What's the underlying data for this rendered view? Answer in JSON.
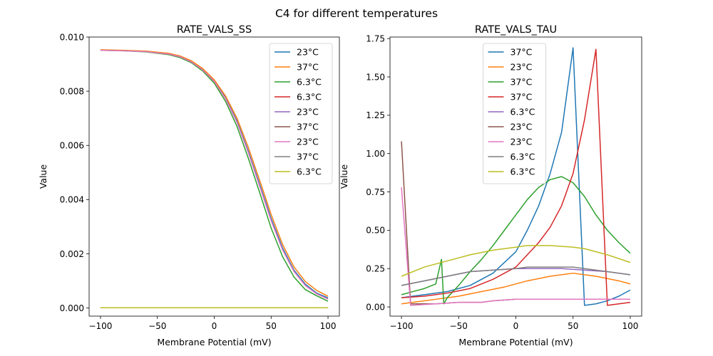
{
  "suptitle": "C4 for different temperatures",
  "chart_data": [
    {
      "type": "line",
      "title": "RATE_VALS_SS",
      "xlabel": "Membrane Potential (mV)",
      "ylabel": "Value",
      "xlim": [
        -110,
        110
      ],
      "ylim": [
        -0.0003,
        0.01
      ],
      "xticks": [
        -100,
        -50,
        0,
        50,
        100
      ],
      "xtick_labels": [
        "−100",
        "−50",
        "0",
        "50",
        "100"
      ],
      "yticks": [
        0,
        0.002,
        0.004,
        0.006,
        0.008,
        0.01
      ],
      "ytick_labels": [
        "0.000",
        "0.002",
        "0.004",
        "0.006",
        "0.008",
        "0.010"
      ],
      "legend_position": "top-right",
      "series": [
        {
          "name": "23°C",
          "color": "#1f77b4",
          "points": [
            [
              -100,
              0.00952
            ],
            [
              -80,
              0.0095
            ],
            [
              -60,
              0.00947
            ],
            [
              -40,
              0.00938
            ],
            [
              -30,
              0.00928
            ],
            [
              -20,
              0.0091
            ],
            [
              -10,
              0.0088
            ],
            [
              0,
              0.00838
            ],
            [
              10,
              0.00775
            ],
            [
              20,
              0.0069
            ],
            [
              30,
              0.00578
            ],
            [
              40,
              0.00455
            ],
            [
              50,
              0.0033
            ],
            [
              60,
              0.00222
            ],
            [
              70,
              0.0014
            ],
            [
              80,
              0.00088
            ],
            [
              90,
              0.00055
            ],
            [
              100,
              0.00037
            ]
          ]
        },
        {
          "name": "37°C",
          "color": "#ff7f0e",
          "points": [
            [
              -100,
              0.00953
            ],
            [
              -80,
              0.00951
            ],
            [
              -60,
              0.00948
            ],
            [
              -40,
              0.0094
            ],
            [
              -30,
              0.0093
            ],
            [
              -20,
              0.00912
            ],
            [
              -10,
              0.00883
            ],
            [
              0,
              0.00842
            ],
            [
              10,
              0.00782
            ],
            [
              20,
              0.007
            ],
            [
              30,
              0.00592
            ],
            [
              40,
              0.0047
            ],
            [
              50,
              0.00345
            ],
            [
              60,
              0.00235
            ],
            [
              70,
              0.00152
            ],
            [
              80,
              0.00098
            ],
            [
              90,
              0.00065
            ],
            [
              100,
              0.00043
            ]
          ]
        },
        {
          "name": "6.3°C",
          "color": "#2ca02c",
          "points": [
            [
              -100,
              0.00951
            ],
            [
              -80,
              0.00949
            ],
            [
              -60,
              0.00945
            ],
            [
              -40,
              0.00935
            ],
            [
              -30,
              0.00924
            ],
            [
              -20,
              0.00905
            ],
            [
              -10,
              0.00874
            ],
            [
              0,
              0.0083
            ],
            [
              10,
              0.00762
            ],
            [
              20,
              0.0067
            ],
            [
              30,
              0.00552
            ],
            [
              40,
              0.00425
            ],
            [
              50,
              0.00295
            ],
            [
              60,
              0.0019
            ],
            [
              70,
              0.00115
            ],
            [
              80,
              0.00068
            ],
            [
              90,
              0.00045
            ],
            [
              100,
              0.00025
            ]
          ]
        },
        {
          "name": "6.3°C",
          "color": "#d62728",
          "points": [
            [
              -100,
              1e-05
            ],
            [
              100,
              1e-05
            ]
          ]
        },
        {
          "name": "23°C",
          "color": "#9467bd",
          "points": [
            [
              -100,
              1e-05
            ],
            [
              100,
              1e-05
            ]
          ]
        },
        {
          "name": "37°C",
          "color": "#8c564b",
          "points": [
            [
              -100,
              1e-05
            ],
            [
              100,
              1e-05
            ]
          ]
        },
        {
          "name": "23°C",
          "color": "#e377c2",
          "points": [
            [
              -100,
              0.00951
            ],
            [
              -80,
              0.00949
            ],
            [
              -60,
              0.00946
            ],
            [
              -40,
              0.00937
            ],
            [
              -30,
              0.00927
            ],
            [
              -20,
              0.00908
            ],
            [
              -10,
              0.00878
            ],
            [
              0,
              0.00836
            ],
            [
              10,
              0.00772
            ],
            [
              20,
              0.00685
            ],
            [
              30,
              0.00572
            ],
            [
              40,
              0.00448
            ],
            [
              50,
              0.00322
            ],
            [
              60,
              0.00215
            ],
            [
              70,
              0.00135
            ],
            [
              80,
              0.00083
            ],
            [
              90,
              0.00052
            ],
            [
              100,
              0.00033
            ]
          ]
        },
        {
          "name": "37°C",
          "color": "#7f7f7f",
          "points": [
            [
              -100,
              1e-05
            ],
            [
              100,
              1e-05
            ]
          ]
        },
        {
          "name": "6.3°C",
          "color": "#bcbd22",
          "points": [
            [
              -100,
              1e-05
            ],
            [
              100,
              1e-05
            ]
          ]
        }
      ]
    },
    {
      "type": "line",
      "title": "RATE_VALS_TAU",
      "xlabel": "Membrane Potential (mV)",
      "ylabel": "Value",
      "xlim": [
        -110,
        110
      ],
      "ylim": [
        -0.06,
        1.76
      ],
      "xticks": [
        -100,
        -50,
        0,
        50,
        100
      ],
      "xtick_labels": [
        "−100",
        "−50",
        "0",
        "50",
        "100"
      ],
      "yticks": [
        0,
        0.25,
        0.5,
        0.75,
        1.0,
        1.25,
        1.5,
        1.75
      ],
      "ytick_labels": [
        "0.00",
        "0.25",
        "0.50",
        "0.75",
        "1.00",
        "1.25",
        "1.50",
        "1.75"
      ],
      "legend_position": "top-center",
      "series": [
        {
          "name": "37°C",
          "color": "#1f77b4",
          "points": [
            [
              -100,
              0.06
            ],
            [
              -80,
              0.08
            ],
            [
              -60,
              0.1
            ],
            [
              -40,
              0.14
            ],
            [
              -20,
              0.22
            ],
            [
              0,
              0.36
            ],
            [
              10,
              0.5
            ],
            [
              20,
              0.66
            ],
            [
              30,
              0.87
            ],
            [
              40,
              1.14
            ],
            [
              50,
              1.69
            ],
            [
              60,
              0.01
            ],
            [
              70,
              0.02
            ],
            [
              80,
              0.04
            ],
            [
              90,
              0.07
            ],
            [
              100,
              0.11
            ]
          ]
        },
        {
          "name": "23°C",
          "color": "#ff7f0e",
          "points": [
            [
              -100,
              0.02
            ],
            [
              -90,
              0.03
            ],
            [
              -70,
              0.05
            ],
            [
              -50,
              0.07
            ],
            [
              -30,
              0.1
            ],
            [
              -10,
              0.13
            ],
            [
              10,
              0.17
            ],
            [
              30,
              0.2
            ],
            [
              50,
              0.22
            ],
            [
              70,
              0.2
            ],
            [
              90,
              0.17
            ],
            [
              100,
              0.15
            ]
          ]
        },
        {
          "name": "37°C",
          "color": "#2ca02c",
          "points": [
            [
              -100,
              0.08
            ],
            [
              -90,
              0.1
            ],
            [
              -80,
              0.12
            ],
            [
              -70,
              0.15
            ],
            [
              -65,
              0.31
            ],
            [
              -63,
              0.02
            ],
            [
              -60,
              0.06
            ],
            [
              -50,
              0.14
            ],
            [
              -40,
              0.23
            ],
            [
              -30,
              0.31
            ],
            [
              -20,
              0.4
            ],
            [
              -10,
              0.5
            ],
            [
              0,
              0.6
            ],
            [
              10,
              0.7
            ],
            [
              20,
              0.78
            ],
            [
              30,
              0.83
            ],
            [
              40,
              0.85
            ],
            [
              50,
              0.81
            ],
            [
              60,
              0.72
            ],
            [
              70,
              0.6
            ],
            [
              80,
              0.5
            ],
            [
              90,
              0.42
            ],
            [
              100,
              0.35
            ]
          ]
        },
        {
          "name": "37°C",
          "color": "#d62728",
          "points": [
            [
              -100,
              0.06
            ],
            [
              -80,
              0.07
            ],
            [
              -60,
              0.09
            ],
            [
              -40,
              0.12
            ],
            [
              -20,
              0.18
            ],
            [
              0,
              0.26
            ],
            [
              20,
              0.42
            ],
            [
              30,
              0.52
            ],
            [
              40,
              0.66
            ],
            [
              50,
              0.87
            ],
            [
              60,
              1.22
            ],
            [
              70,
              1.68
            ],
            [
              80,
              0.01
            ],
            [
              90,
              0.02
            ],
            [
              100,
              0.03
            ]
          ]
        },
        {
          "name": "6.3°C",
          "color": "#9467bd",
          "points": [
            [
              -100,
              0.14
            ],
            [
              -80,
              0.17
            ],
            [
              -60,
              0.2
            ],
            [
              -40,
              0.23
            ],
            [
              -20,
              0.24
            ],
            [
              0,
              0.25
            ],
            [
              20,
              0.25
            ],
            [
              40,
              0.25
            ],
            [
              60,
              0.24
            ],
            [
              80,
              0.23
            ],
            [
              100,
              0.21
            ]
          ]
        },
        {
          "name": "23°C",
          "color": "#8c564b",
          "points": [
            [
              -100,
              1.08
            ],
            [
              -92,
              0.02
            ],
            [
              -70,
              0.02
            ],
            [
              -50,
              0.03
            ],
            [
              -30,
              0.03
            ],
            [
              -20,
              0.04
            ],
            [
              0,
              0.05
            ],
            [
              20,
              0.05
            ],
            [
              40,
              0.05
            ],
            [
              60,
              0.05
            ],
            [
              80,
              0.05
            ],
            [
              100,
              0.05
            ]
          ]
        },
        {
          "name": "23°C",
          "color": "#e377c2",
          "points": [
            [
              -100,
              0.78
            ],
            [
              -92,
              0.01
            ],
            [
              -70,
              0.02
            ],
            [
              -50,
              0.03
            ],
            [
              -30,
              0.03
            ],
            [
              -20,
              0.04
            ],
            [
              0,
              0.05
            ],
            [
              20,
              0.05
            ],
            [
              40,
              0.05
            ],
            [
              60,
              0.05
            ],
            [
              80,
              0.05
            ],
            [
              100,
              0.05
            ]
          ]
        },
        {
          "name": "6.3°C",
          "color": "#7f7f7f",
          "points": [
            [
              -100,
              0.14
            ],
            [
              -80,
              0.17
            ],
            [
              -60,
              0.2
            ],
            [
              -40,
              0.23
            ],
            [
              -20,
              0.24
            ],
            [
              0,
              0.25
            ],
            [
              10,
              0.26
            ],
            [
              30,
              0.26
            ],
            [
              50,
              0.26
            ],
            [
              60,
              0.25
            ],
            [
              80,
              0.23
            ],
            [
              100,
              0.21
            ]
          ]
        },
        {
          "name": "6.3°C",
          "color": "#bcbd22",
          "points": [
            [
              -100,
              0.2
            ],
            [
              -80,
              0.26
            ],
            [
              -60,
              0.3
            ],
            [
              -40,
              0.34
            ],
            [
              -20,
              0.37
            ],
            [
              0,
              0.39
            ],
            [
              10,
              0.4
            ],
            [
              30,
              0.4
            ],
            [
              50,
              0.39
            ],
            [
              60,
              0.38
            ],
            [
              80,
              0.34
            ],
            [
              100,
              0.29
            ]
          ]
        }
      ]
    }
  ]
}
